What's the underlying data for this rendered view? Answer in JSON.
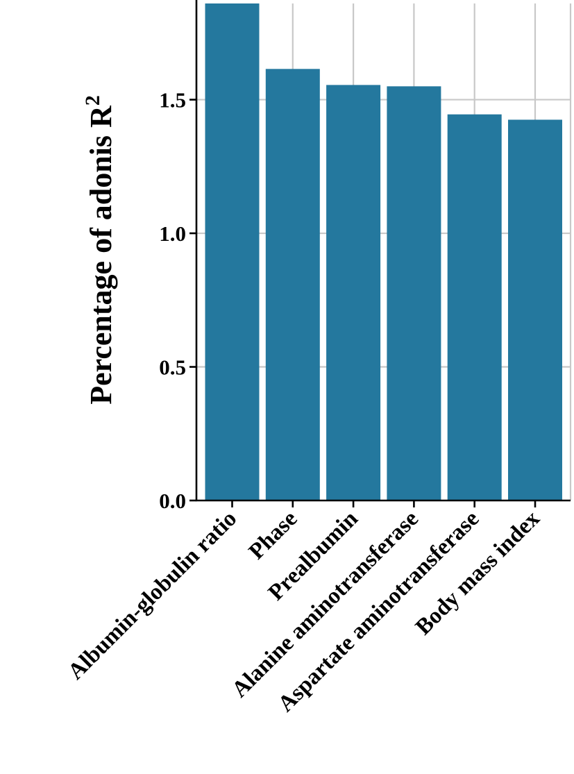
{
  "chart_data": {
    "type": "bar",
    "title": "",
    "xlabel": "",
    "ylabel": "Percentage of adonis R",
    "ylabel_superscript": "2",
    "categories": [
      "Albumin-globulin ratio",
      "Phase",
      "Prealbumin",
      "Alanine aminotransferase",
      "Aspartate aminotransferase",
      "Body mass index"
    ],
    "values": [
      1.86,
      1.615,
      1.555,
      1.55,
      1.445,
      1.425
    ],
    "ylim": [
      0,
      1.86
    ],
    "yticks": [
      0.0,
      0.5,
      1.0,
      1.5
    ],
    "ytick_labels": [
      "0.0",
      "0.5",
      "1.0",
      "1.5"
    ],
    "bar_color": "#24789e",
    "grid": true,
    "grid_color": "#c8c8c8",
    "legend": "none"
  }
}
